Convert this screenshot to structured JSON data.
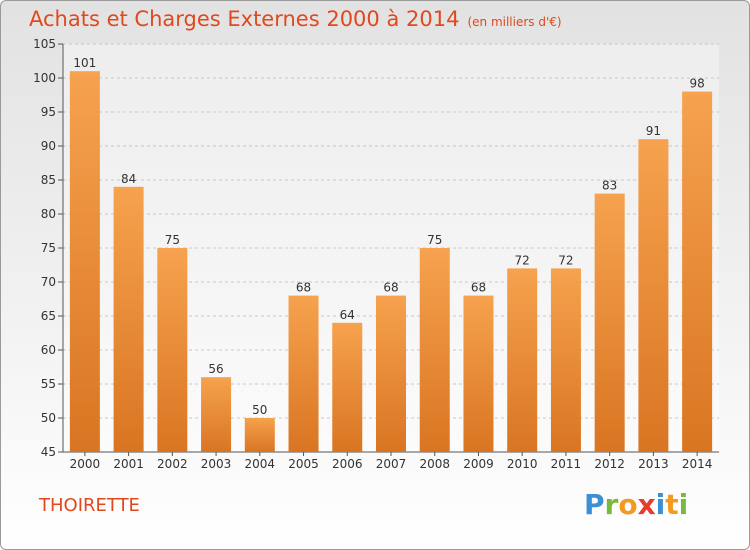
{
  "header": {
    "title": "Achats et Charges Externes 2000 à 2014",
    "unit": "(en milliers d'€)"
  },
  "footer": {
    "commune": "THOIRETTE",
    "logo_letters": [
      "P",
      "r",
      "o",
      "x",
      "i",
      "t",
      "i"
    ],
    "logo_colors": [
      "#3a8fd6",
      "#7cb83e",
      "#f39a1f",
      "#e63b2e",
      "#3a8fd6",
      "#f39a1f",
      "#7cb83e"
    ]
  },
  "colors": {
    "bar_light": "#f6a24e",
    "bar_dark": "#d97522",
    "title": "#e0491e"
  },
  "chart_data": {
    "type": "bar",
    "categories": [
      "2000",
      "2001",
      "2002",
      "2003",
      "2004",
      "2005",
      "2006",
      "2007",
      "2008",
      "2009",
      "2010",
      "2011",
      "2012",
      "2013",
      "2014"
    ],
    "values": [
      101,
      84,
      75,
      56,
      50,
      68,
      64,
      68,
      75,
      68,
      72,
      72,
      83,
      91,
      98
    ],
    "title": "Achats et Charges Externes 2000 à 2014",
    "xlabel": "",
    "ylabel": "",
    "ylim": [
      45,
      105
    ],
    "yticks": [
      45,
      50,
      55,
      60,
      65,
      70,
      75,
      80,
      85,
      90,
      95,
      100,
      105
    ],
    "grid": true,
    "data_labels": true
  }
}
